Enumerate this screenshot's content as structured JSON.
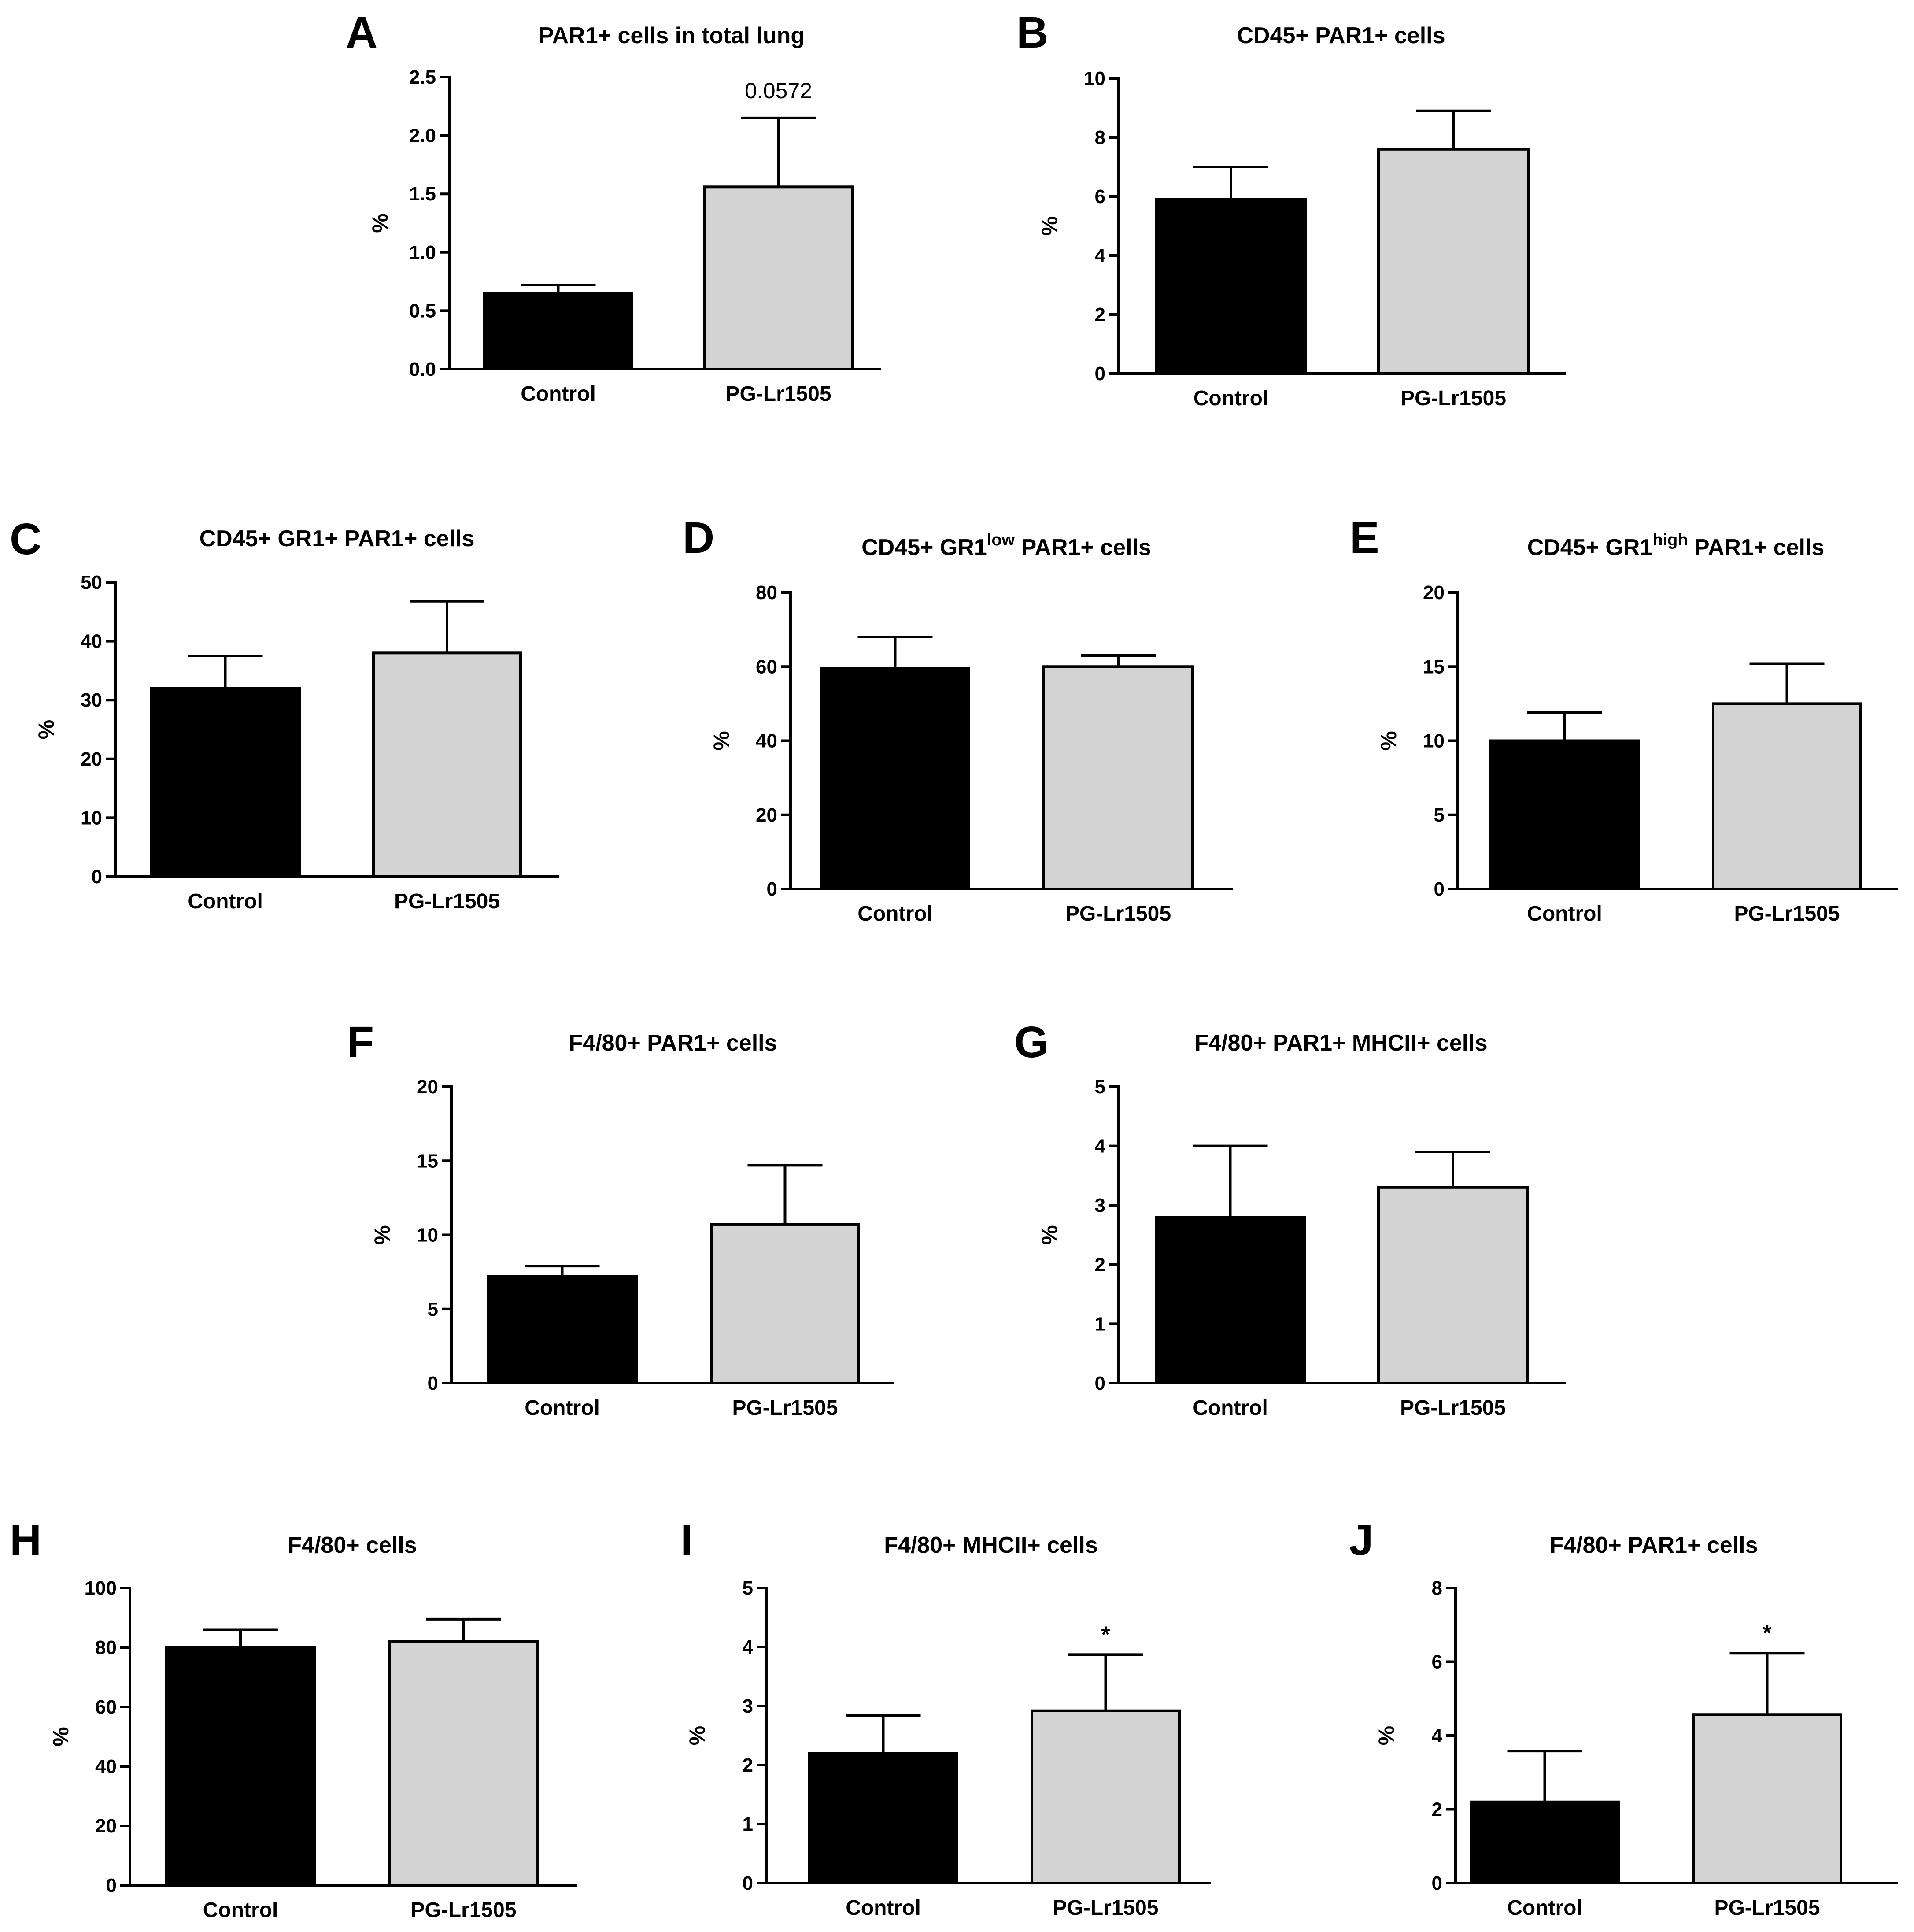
{
  "colors": {
    "control": "#000000",
    "treated": "#d3d3d3",
    "axis": "#000000"
  },
  "chart_data": [
    {
      "panel": "A",
      "type": "bar",
      "title": "PAR1+ cells in total lung",
      "ylabel": "%",
      "categories": [
        "Control",
        "PG-Lr1505"
      ],
      "values": [
        0.65,
        1.56
      ],
      "errors": [
        0.07,
        0.59
      ],
      "ylim": [
        0,
        2.5
      ],
      "yticks": [
        "0.0",
        "0.5",
        "1.0",
        "1.5",
        "2.0",
        "2.5"
      ],
      "annotations": [
        null,
        "0.0572"
      ]
    },
    {
      "panel": "B",
      "type": "bar",
      "title": "CD45+ PAR1+ cells",
      "ylabel": "%",
      "categories": [
        "Control",
        "PG-Lr1505"
      ],
      "values": [
        5.9,
        7.6
      ],
      "errors": [
        1.1,
        1.3
      ],
      "ylim": [
        0,
        10
      ],
      "yticks": [
        "0",
        "2",
        "4",
        "6",
        "8",
        "10"
      ],
      "annotations": [
        null,
        null
      ]
    },
    {
      "panel": "C",
      "type": "bar",
      "title": "CD45+ GR1+ PAR1+ cells",
      "ylabel": "%",
      "categories": [
        "Control",
        "PG-Lr1505"
      ],
      "values": [
        32,
        38
      ],
      "errors": [
        5.5,
        8.8
      ],
      "ylim": [
        0,
        50
      ],
      "yticks": [
        "0",
        "10",
        "20",
        "30",
        "40",
        "50"
      ],
      "annotations": [
        null,
        null
      ]
    },
    {
      "panel": "D",
      "type": "bar",
      "title": "CD45+ GR1",
      "title_sup": "low",
      "title_suffix": " PAR1+ cells",
      "ylabel": "%",
      "categories": [
        "Control",
        "PG-Lr1505"
      ],
      "values": [
        59.5,
        60
      ],
      "errors": [
        8.5,
        3
      ],
      "ylim": [
        0,
        80
      ],
      "yticks": [
        "0",
        "20",
        "40",
        "60",
        "80"
      ],
      "annotations": [
        null,
        null
      ]
    },
    {
      "panel": "E",
      "type": "bar",
      "title": "CD45+ GR1",
      "title_sup": "high",
      "title_suffix": " PAR1+ cells",
      "ylabel": "%",
      "categories": [
        "Control",
        "PG-Lr1505"
      ],
      "values": [
        10,
        12.5
      ],
      "errors": [
        1.9,
        2.7
      ],
      "ylim": [
        0,
        20
      ],
      "yticks": [
        "0",
        "5",
        "10",
        "15",
        "20"
      ],
      "annotations": [
        null,
        null
      ]
    },
    {
      "panel": "F",
      "type": "bar",
      "title": "F4/80+ PAR1+ cells",
      "ylabel": "%",
      "categories": [
        "Control",
        "PG-Lr1505"
      ],
      "values": [
        7.2,
        10.7
      ],
      "errors": [
        0.7,
        4
      ],
      "ylim": [
        0,
        20
      ],
      "yticks": [
        "0",
        "5",
        "10",
        "15",
        "20"
      ],
      "annotations": [
        null,
        null
      ]
    },
    {
      "panel": "G",
      "type": "bar",
      "title": "F4/80+ PAR1+ MHCII+ cells",
      "ylabel": "%",
      "categories": [
        "Control",
        "PG-Lr1505"
      ],
      "values": [
        2.8,
        3.3
      ],
      "errors": [
        1.2,
        0.6
      ],
      "ylim": [
        0,
        5
      ],
      "yticks": [
        "0",
        "1",
        "2",
        "3",
        "4",
        "5"
      ],
      "annotations": [
        null,
        null
      ]
    },
    {
      "panel": "H",
      "type": "bar",
      "title": "F4/80+ cells",
      "ylabel": "%",
      "categories": [
        "Control",
        "PG-Lr1505"
      ],
      "values": [
        80,
        82
      ],
      "errors": [
        6,
        7.5
      ],
      "ylim": [
        0,
        100
      ],
      "yticks": [
        "0",
        "20",
        "40",
        "60",
        "80",
        "100"
      ],
      "annotations": [
        null,
        null
      ]
    },
    {
      "panel": "I",
      "type": "bar",
      "title": "F4/80+ MHCII+ cells",
      "ylabel": "%",
      "categories": [
        "Control",
        "PG-Lr1505"
      ],
      "values": [
        2.2,
        2.92
      ],
      "errors": [
        0.64,
        0.95
      ],
      "ylim": [
        0,
        5
      ],
      "yticks": [
        "0",
        "1",
        "2",
        "3",
        "4",
        "5"
      ],
      "annotations": [
        null,
        "*"
      ]
    },
    {
      "panel": "J",
      "type": "bar",
      "title": "F4/80+ PAR1+ cells",
      "ylabel": "%",
      "categories": [
        "Control",
        "PG-Lr1505"
      ],
      "values": [
        2.2,
        4.57
      ],
      "errors": [
        1.38,
        1.66
      ],
      "ylim": [
        0,
        8
      ],
      "yticks": [
        "0",
        "2",
        "4",
        "6",
        "8"
      ],
      "annotations": [
        null,
        "*"
      ]
    }
  ]
}
